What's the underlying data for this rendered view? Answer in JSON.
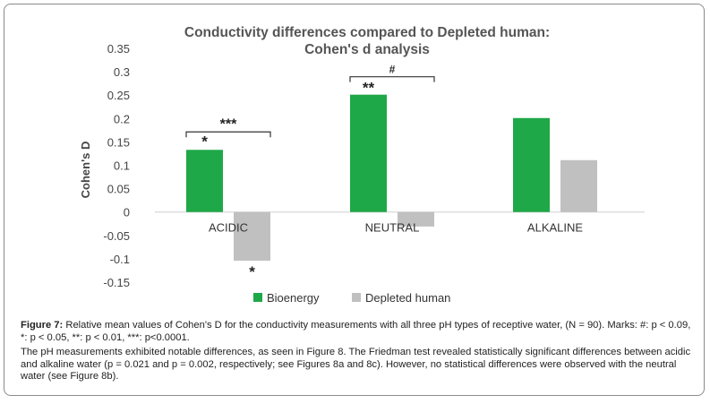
{
  "chart_data": {
    "type": "bar",
    "title": "Conductivity differences compared to Depleted human:",
    "subtitle": "Cohen's d analysis",
    "xlabel": "",
    "ylabel": "Cohen's D",
    "ylim": [
      -0.15,
      0.35
    ],
    "yticks": [
      "0.35",
      "0.3",
      "0.25",
      "0.2",
      "0.15",
      "0.1",
      "0.05",
      "0",
      "-0.05",
      "-0.1",
      "-0.15"
    ],
    "categories": [
      "ACIDIC",
      "NEUTRAL",
      "ALKALINE"
    ],
    "series": [
      {
        "name": "Bioenergy",
        "color": "#1fa848",
        "values": [
          0.133,
          0.251,
          0.201
        ]
      },
      {
        "name": "Depleted human",
        "color": "#c0c0c0",
        "values": [
          -0.104,
          -0.031,
          0.111
        ]
      }
    ],
    "bar_marks": [
      {
        "category": "ACIDIC",
        "series": "Bioenergy",
        "text": "*"
      },
      {
        "category": "ACIDIC",
        "series": "Depleted human",
        "text": "*"
      }
    ],
    "brackets": [
      {
        "category": "ACIDIC",
        "text": "***"
      },
      {
        "category": "NEUTRAL",
        "text": "#"
      }
    ],
    "neutral_bar_mark": "**",
    "grid": false,
    "legend_position": "bottom"
  },
  "caption": {
    "label": "Figure 7:",
    "text": " Relative mean values of Cohen's D for the conductivity measurements with all three pH types of receptive water, (N = 90). Marks: #: p < 0.09, *: p < 0.05, **: p < 0.01, ***: p<0.0001.",
    "body": "The pH measurements exhibited notable differences, as seen in Figure 8. The Friedman test revealed statistically significant differences between acidic and alkaline water (p = 0.021 and p = 0.002, respectively; see Figures 8a and 8c). However, no statistical differences were observed with the neutral water (see Figure 8b)."
  }
}
